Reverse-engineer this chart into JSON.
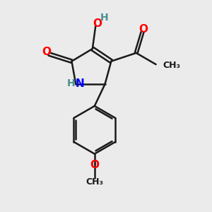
{
  "background_color": "#ebebeb",
  "bond_color": "#1a1a1a",
  "bond_width": 1.8,
  "atom_colors": {
    "O": "#ff0000",
    "N": "#0000ff",
    "C": "#1a1a1a",
    "H": "#4a9090"
  },
  "font_size_atoms": 11,
  "font_size_small": 9,
  "figsize": [
    3.0,
    3.0
  ],
  "dpi": 100
}
